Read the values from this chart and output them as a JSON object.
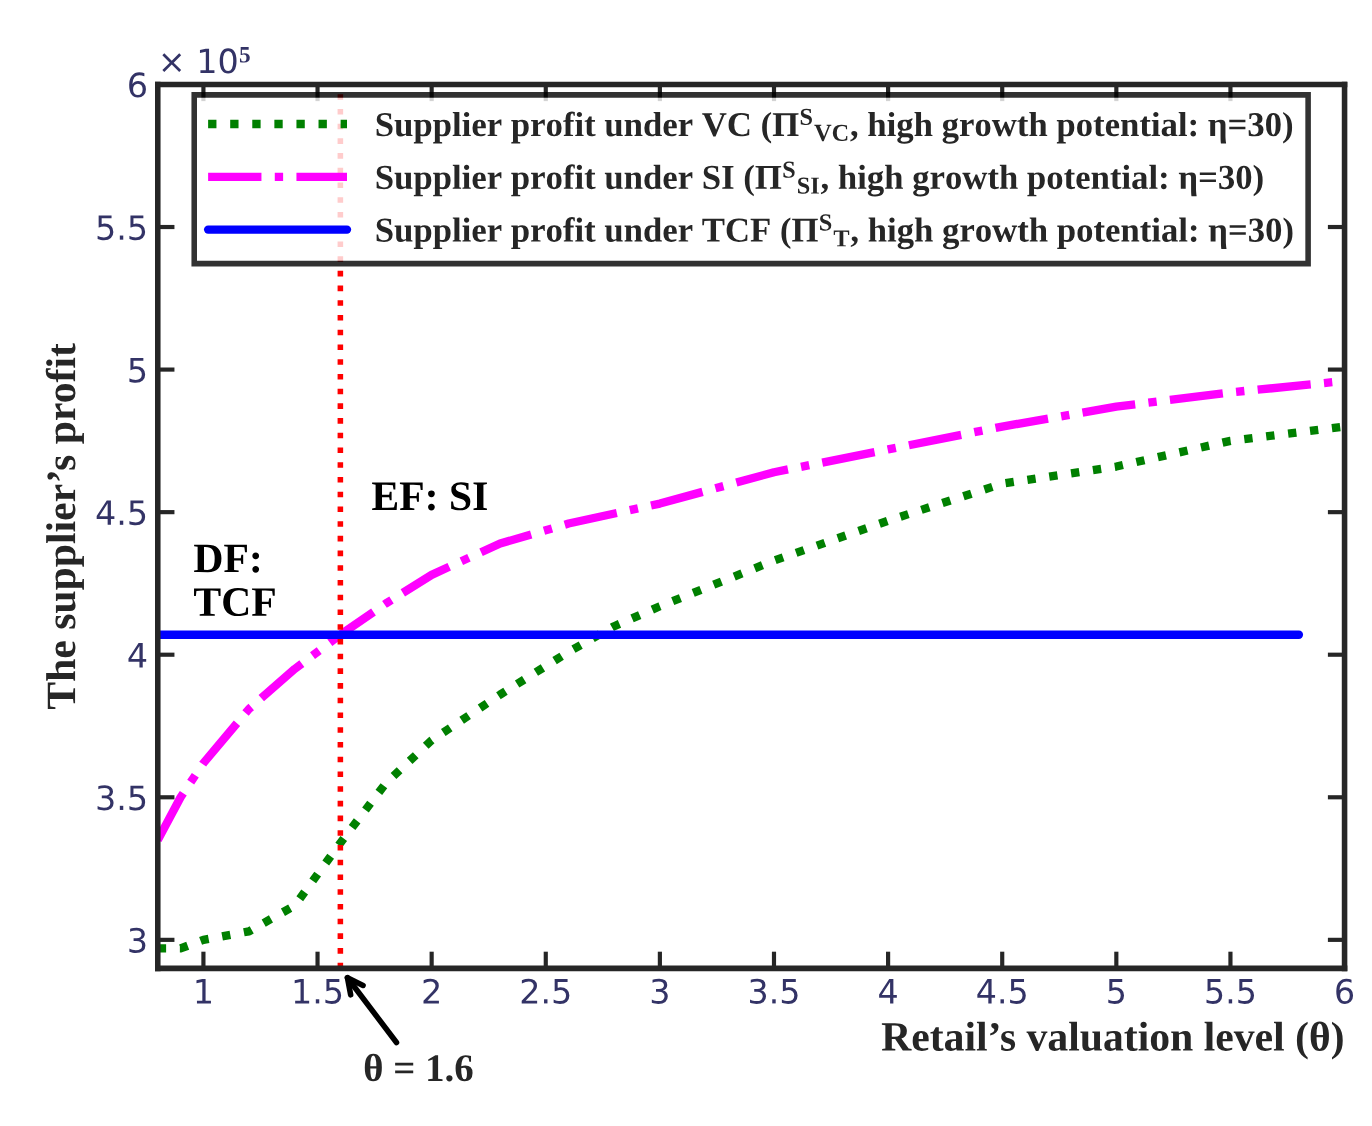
{
  "chart_data": {
    "type": "line",
    "xlabel": "Retail’s valuation level (θ)",
    "ylabel": "The supplier’s profit",
    "xlim": [
      0.8,
      6
    ],
    "xticks": [
      1,
      1.5,
      2,
      2.5,
      3,
      3.5,
      4,
      4.5,
      5,
      5.5,
      6
    ],
    "ylim": [
      2.9,
      6
    ],
    "yticks": [
      3,
      3.5,
      4,
      4.5,
      5,
      5.5,
      6
    ],
    "grid": false,
    "legend": "top",
    "series": [
      {
        "name": "Supplier profit under VC (Π$^{S}$$_{VC}$, high growth potential: η=30)",
        "color": "#008000",
        "line_style": "dotted",
        "x": [
          0.8,
          0.9,
          1.0,
          1.2,
          1.4,
          1.6,
          1.8,
          2.0,
          2.3,
          2.6,
          2.8,
          3.0,
          3.5,
          4.0,
          4.5,
          5.0,
          5.5,
          6.0
        ],
        "values": [
          2.97,
          2.97,
          3.0,
          3.03,
          3.12,
          3.34,
          3.55,
          3.7,
          3.86,
          4.01,
          4.1,
          4.17,
          4.33,
          4.47,
          4.6,
          4.66,
          4.75,
          4.8
        ]
      },
      {
        "name": "Supplier profit under SI (Π$^{S}$$_{SI}$, high growth potential: η=30)",
        "color": "#ff00ff",
        "line_style": "dashdot",
        "x": [
          0.8,
          0.9,
          1.0,
          1.2,
          1.4,
          1.6,
          1.8,
          2.0,
          2.3,
          2.6,
          3.0,
          3.5,
          4.0,
          4.5,
          5.0,
          5.5,
          6.0
        ],
        "values": [
          3.35,
          3.5,
          3.62,
          3.81,
          3.95,
          4.07,
          4.18,
          4.28,
          4.39,
          4.46,
          4.53,
          4.64,
          4.72,
          4.8,
          4.87,
          4.92,
          4.96
        ]
      },
      {
        "name": "Supplier profit under TCF (Π$^{S}$$_{T}$, high growth potential: η=30)",
        "color": "#0000ff",
        "line_style": "solid",
        "x": [
          0.8,
          5.8
        ],
        "values": [
          4.07,
          4.07
        ]
      }
    ],
    "ref_lines": [
      {
        "axis": "x",
        "value": 1.6,
        "label": null,
        "color": "#ff0000",
        "line_style": "dotted"
      }
    ],
    "annotations": [
      "× 10$^{5}$",
      "EF: SI",
      "DF:\nTCF",
      {
        "text": "θ = 1.6",
        "x": 1.6,
        "y": 2.9
      }
    ]
  }
}
